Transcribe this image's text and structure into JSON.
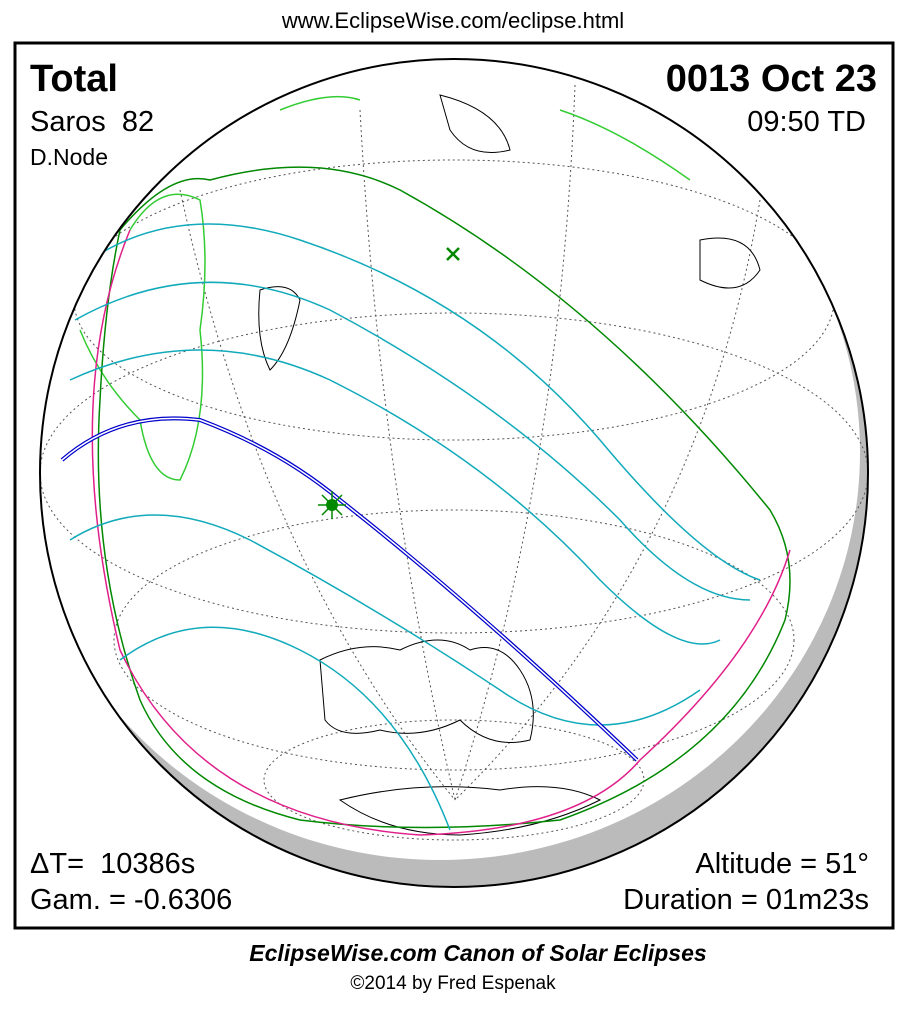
{
  "header": {
    "url": "www.EclipseWise.com/eclipse.html"
  },
  "panel": {
    "eclipse_type": "Total",
    "saros": "Saros  82",
    "node": "D.Node",
    "date": "0013 Oct 23",
    "time": "09:50 TD",
    "delta_t": "ΔT=  10386s",
    "gamma": "Gam. = -0.6306",
    "altitude": "Altitude = 51°",
    "duration": "Duration = 01m23s"
  },
  "footer": {
    "title": "EclipseWise.com Canon of Solar Eclipses",
    "copyright": "©2014 by Fred Espenak"
  }
}
